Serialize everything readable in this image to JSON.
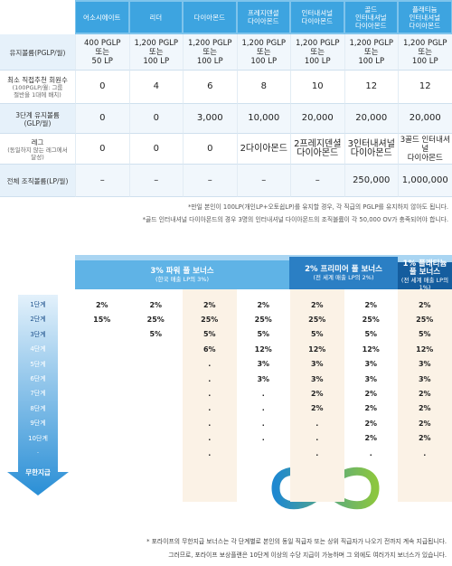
{
  "table": {
    "header": [
      "어소시에이트",
      "리더",
      "다이아몬드",
      "프레지덴셜\n다이아몬드",
      "인터내셔널\n다이아몬드",
      "골드\n인터내셔널\n다이아몬드",
      "플래티늄\n인터내셔널\n다이아몬드"
    ],
    "rows": [
      {
        "label": "유지볼륨(PGLP/월)",
        "sublabel": null,
        "cells": [
          "400 PGLP\n또는\n50 LP",
          "1,200 PGLP\n또는\n100 LP",
          "1,200 PGLP\n또는\n100 LP",
          "1,200 PGLP\n또는\n100 LP",
          "1,200 PGLP\n또는\n100 LP",
          "1,200 PGLP\n또는\n100 LP",
          "1,200 PGLP\n또는\n100 LP"
        ]
      },
      {
        "label": "최소 직접추천 회원수",
        "sublabel": "(100PGLP/월: 그룹\n절반을 1대에 배치)",
        "cells": [
          "0",
          "4",
          "6",
          "8",
          "10",
          "12",
          "12"
        ]
      },
      {
        "label": "3단계 유지볼륨\n(GLP/월)",
        "sublabel": null,
        "cells": [
          "0",
          "0",
          "3,000",
          "10,000",
          "20,000",
          "20,000",
          "20,000"
        ]
      },
      {
        "label": "레그",
        "sublabel": "(동일하지 않는 레그에서\n달성)",
        "cells": [
          "0",
          "0",
          "0",
          "2다이아몬드",
          "2프레지덴셜\n다이아몬드",
          "3인터내셔널\n다이아몬드",
          "3골드 인터내셔널\n다이아몬드"
        ]
      },
      {
        "label": "전체 조직볼륨(LP/월)",
        "sublabel": null,
        "cells": [
          "–",
          "–",
          "–",
          "–",
          "–",
          "250,000",
          "1,000,000"
        ]
      }
    ]
  },
  "notes": [
    "*만일 본인이 100LP(개인LP+오토쉽LP)를 유지할 경우, 각 직급의 PGLP를 유지하지 않아도 됩니다.",
    "*골드 인터내셔널 다이아몬드의 경우 3명의 인터내셔널 다이아몬드의 조직볼륨이 각 50,000 OV가 충족되어야 합니다."
  ],
  "bonus": {
    "headers": [
      {
        "title": "3% 파워 풀 보너스",
        "subtitle": "(한국 매출 LP의 3%)"
      },
      {
        "title": "2% 프리미어 풀 보너스",
        "subtitle": "(전 세계 매출 LP의 2%)"
      },
      {
        "title": "1% 플래티늄\n풀 보너스",
        "subtitle": "(전 세계 매출 LP의 1%)"
      }
    ],
    "levels": [
      "1단계",
      "2단계",
      "3단계",
      "4단계",
      "5단계",
      "6단계",
      "7단계",
      "8단계",
      "9단계",
      "10단계",
      "·"
    ],
    "rows": [
      [
        "2%",
        "2%",
        "2%",
        "2%",
        "2%",
        "2%",
        "2%"
      ],
      [
        "15%",
        "25%",
        "25%",
        "25%",
        "25%",
        "25%",
        "25%"
      ],
      [
        null,
        "5%",
        "5%",
        "5%",
        "5%",
        "5%",
        "5%"
      ],
      [
        null,
        null,
        "6%",
        "12%",
        "12%",
        "12%",
        "12%"
      ],
      [
        null,
        null,
        ".",
        "3%",
        "3%",
        "3%",
        "3%"
      ],
      [
        null,
        null,
        ".",
        "3%",
        "3%",
        "3%",
        "3%"
      ],
      [
        null,
        null,
        ".",
        ".",
        "2%",
        "2%",
        "2%"
      ],
      [
        null,
        null,
        ".",
        ".",
        "2%",
        "2%",
        "2%"
      ],
      [
        null,
        null,
        ".",
        ".",
        ".",
        "2%",
        "2%"
      ],
      [
        null,
        null,
        ".",
        ".",
        ".",
        "2%",
        "2%"
      ],
      [
        null,
        null,
        ".",
        null,
        ".",
        ".",
        "."
      ]
    ],
    "infinite": "무한지급"
  },
  "footer": [
    "* 포라이프의 무한지급 보너스는 각 단계별로 본인의 동일 직급자 또는 상위 직급자가 나오기 전까지 계속 지급됩니다.",
    "그러므로, 포라이프 보상플랜은 10단계 이상의 수당 지급이 가능하며 그 외에도 여러가지 보너스가 있습니다."
  ]
}
